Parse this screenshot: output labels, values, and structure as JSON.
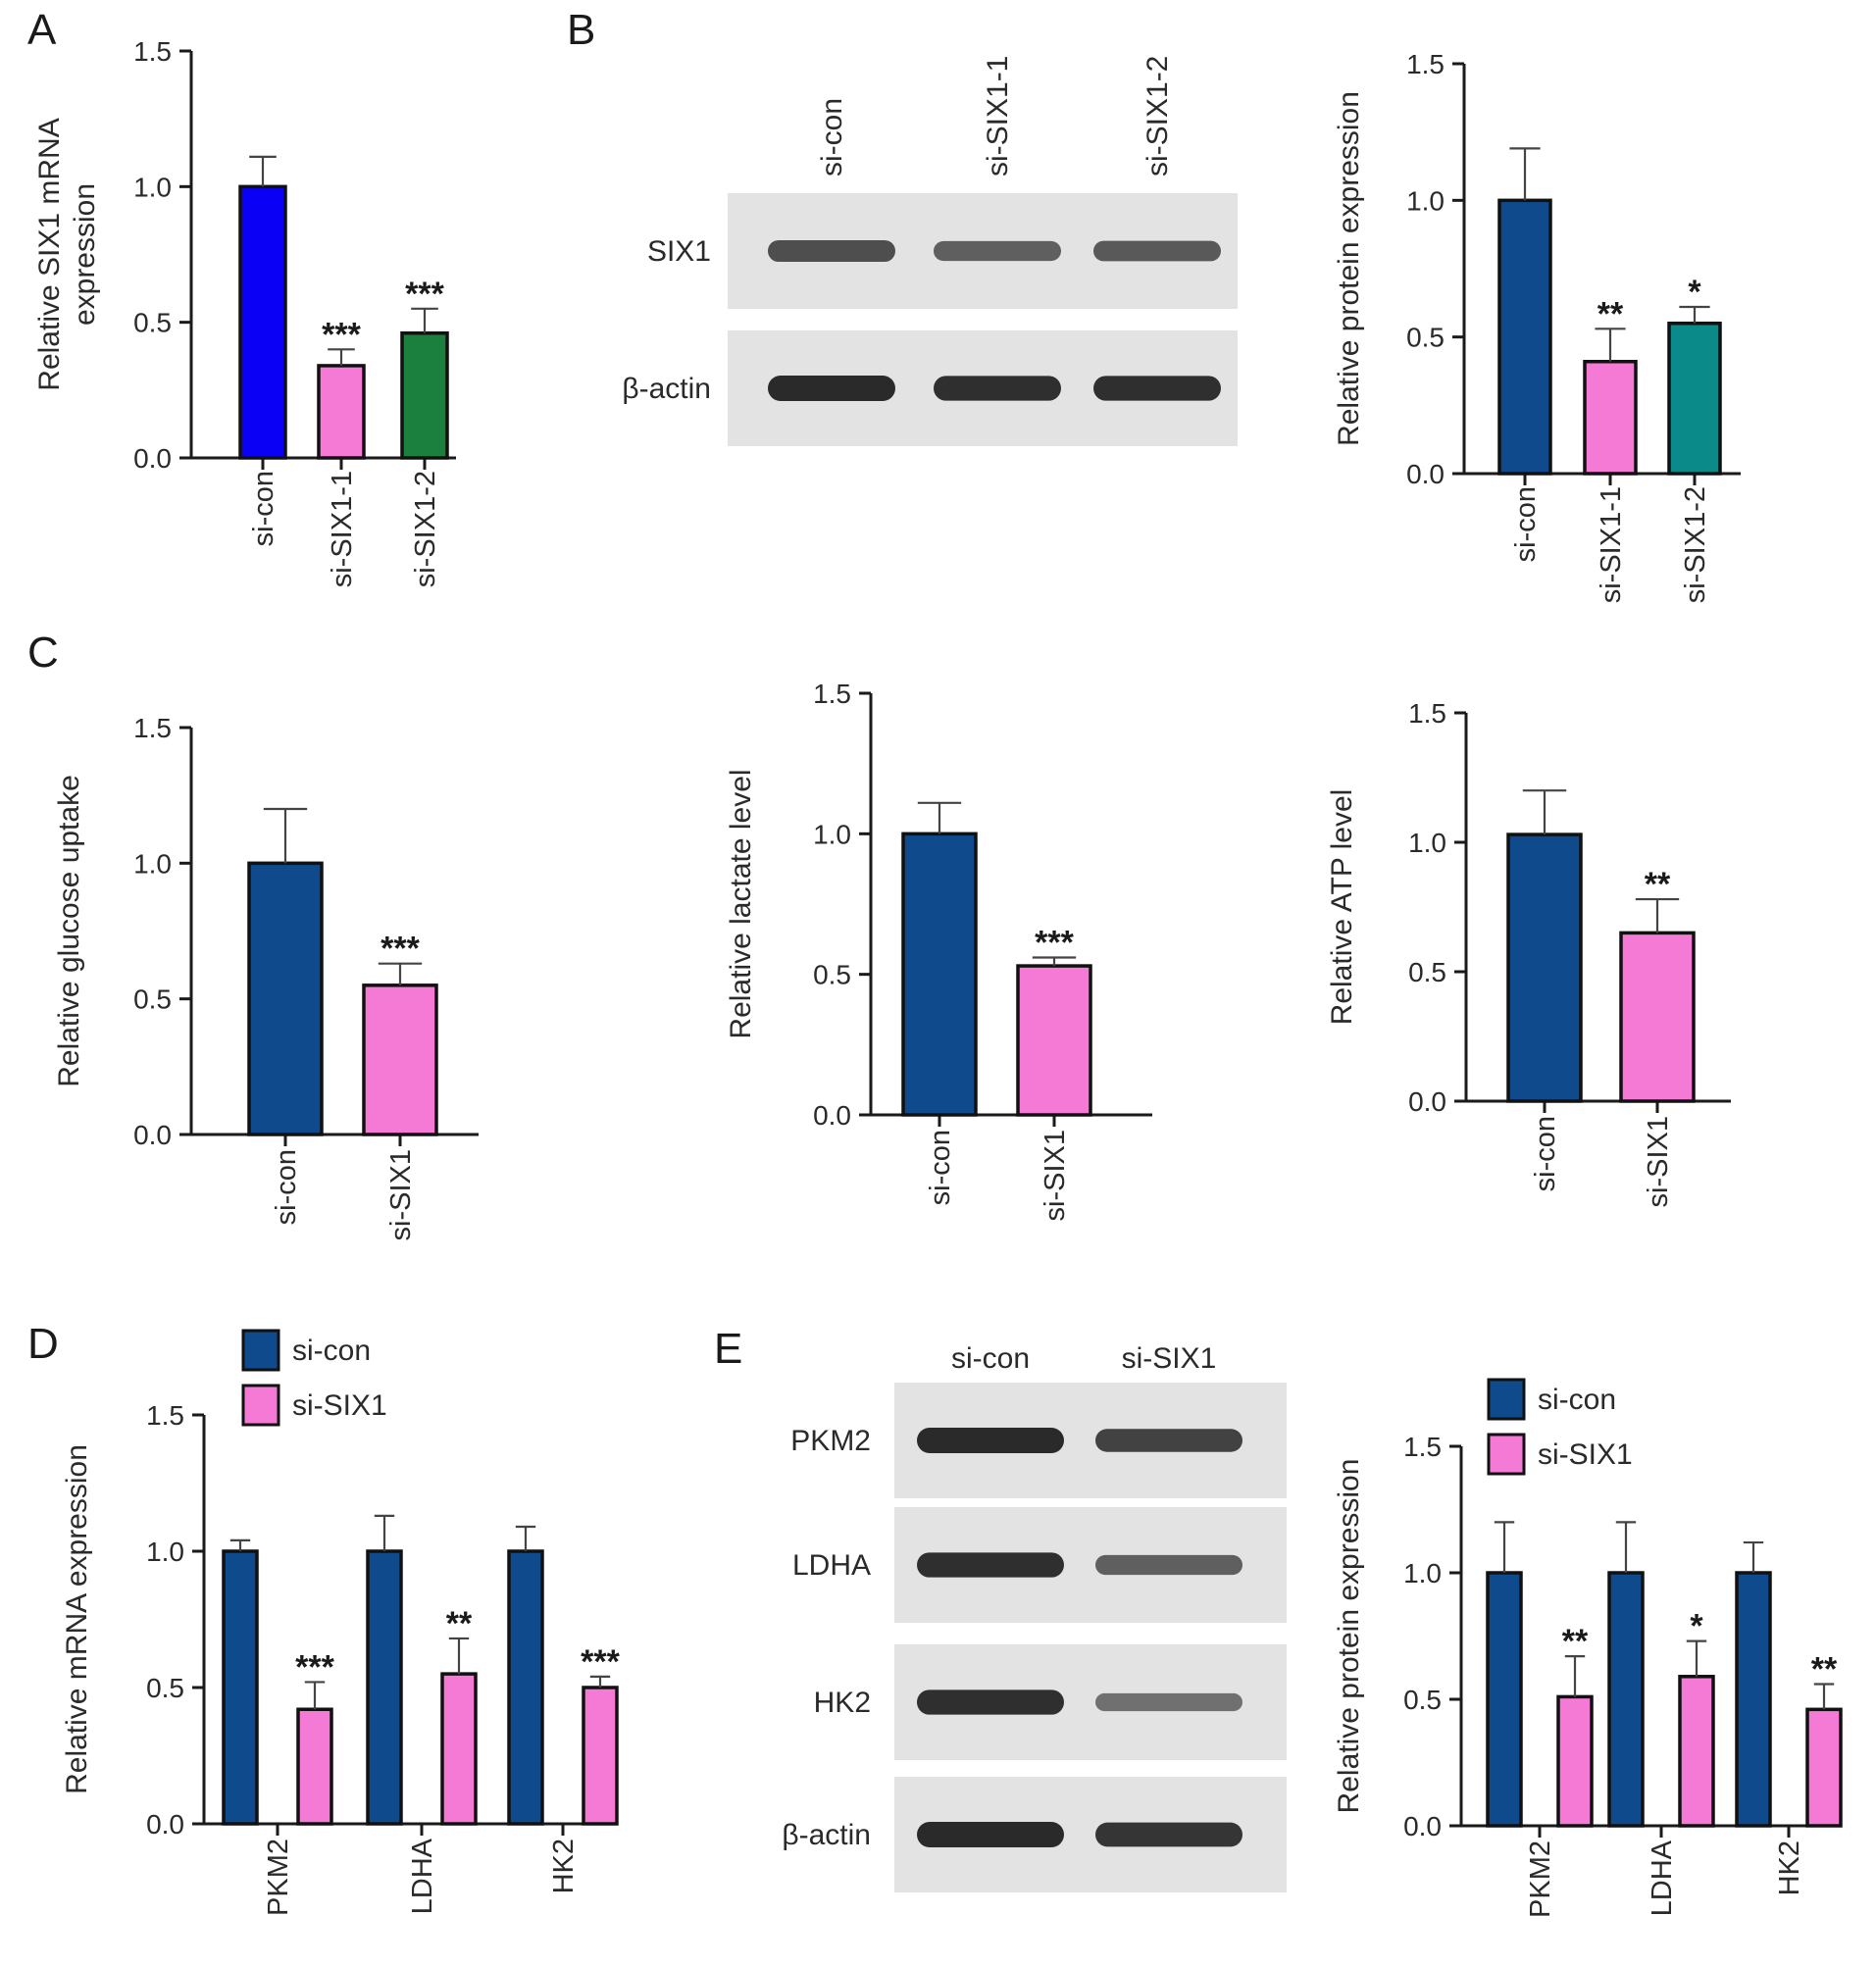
{
  "colors": {
    "blue": "#0a00f5",
    "pink": "#f47ad6",
    "green": "#1b7f3e",
    "navy": "#0f4b8c",
    "teal": "#0b8a8a",
    "blot_bg": "#e3e3e3",
    "band": "#202020"
  },
  "panel_letters": [
    "A",
    "B",
    "C",
    "D",
    "E"
  ],
  "chart_data": [
    {
      "id": "A",
      "type": "bar",
      "ylabel": [
        "Relative SIX1 mRNA",
        "expression"
      ],
      "ylim": [
        0,
        1.5
      ],
      "yticks": [
        "0.0",
        "0.5",
        "1.0",
        "1.5"
      ],
      "categories": [
        "si-con",
        "si-SIX1-1",
        "si-SIX1-2"
      ],
      "values": [
        1.0,
        0.34,
        0.46
      ],
      "errors": [
        0.11,
        0.06,
        0.09
      ],
      "significance": [
        "",
        "***",
        "***"
      ],
      "colors": [
        "blue",
        "pink",
        "green"
      ]
    },
    {
      "id": "B-bar",
      "type": "bar",
      "ylabel": [
        "Relative protein expression"
      ],
      "ylim": [
        0,
        1.5
      ],
      "yticks": [
        "0.0",
        "0.5",
        "1.0",
        "1.5"
      ],
      "categories": [
        "si-con",
        "si-SIX1-1",
        "si-SIX1-2"
      ],
      "values": [
        1.0,
        0.41,
        0.55
      ],
      "errors": [
        0.19,
        0.12,
        0.06
      ],
      "significance": [
        "",
        "**",
        "*"
      ],
      "colors": [
        "navy",
        "pink",
        "teal"
      ]
    },
    {
      "id": "C1",
      "type": "bar",
      "ylabel": [
        "Relative glucose uptake"
      ],
      "ylim": [
        0,
        1.5
      ],
      "yticks": [
        "0.0",
        "0.5",
        "1.0",
        "1.5"
      ],
      "categories": [
        "si-con",
        "si-SIX1"
      ],
      "values": [
        1.0,
        0.55
      ],
      "errors": [
        0.2,
        0.08
      ],
      "significance": [
        "",
        "***"
      ],
      "colors": [
        "navy",
        "pink"
      ]
    },
    {
      "id": "C2",
      "type": "bar",
      "ylabel": [
        "Relative lactate level"
      ],
      "ylim": [
        0,
        1.5
      ],
      "yticks": [
        "0.0",
        "0.5",
        "1.0",
        "1.5"
      ],
      "categories": [
        "si-con",
        "si-SIX1"
      ],
      "values": [
        1.0,
        0.53
      ],
      "errors": [
        0.11,
        0.03
      ],
      "significance": [
        "",
        "***"
      ],
      "colors": [
        "navy",
        "pink"
      ]
    },
    {
      "id": "C3",
      "type": "bar",
      "ylabel": [
        "Relative ATP level"
      ],
      "ylim": [
        0,
        1.5
      ],
      "yticks": [
        "0.0",
        "0.5",
        "1.0",
        "1.5"
      ],
      "categories": [
        "si-con",
        "si-SIX1"
      ],
      "values": [
        1.03,
        0.65
      ],
      "errors": [
        0.17,
        0.13
      ],
      "significance": [
        "",
        "**"
      ],
      "colors": [
        "navy",
        "pink"
      ]
    },
    {
      "id": "D",
      "type": "bar",
      "ylabel": [
        "Relative mRNA expression"
      ],
      "ylim": [
        0,
        1.5
      ],
      "yticks": [
        "0.0",
        "0.5",
        "1.0",
        "1.5"
      ],
      "categories": [
        "PKM2",
        "LDHA",
        "HK2"
      ],
      "series": [
        {
          "name": "si-con",
          "color": "navy",
          "values": [
            1.0,
            1.0,
            1.0
          ],
          "errors": [
            0.04,
            0.13,
            0.09
          ],
          "significance": [
            "",
            "",
            ""
          ]
        },
        {
          "name": "si-SIX1",
          "color": "pink",
          "values": [
            0.42,
            0.55,
            0.5
          ],
          "errors": [
            0.1,
            0.13,
            0.04
          ],
          "significance": [
            "***",
            "**",
            "***"
          ]
        }
      ]
    },
    {
      "id": "E-bar",
      "type": "bar",
      "ylabel": [
        "Relative protein expression"
      ],
      "ylim": [
        0,
        1.5
      ],
      "yticks": [
        "0.0",
        "0.5",
        "1.0",
        "1.5"
      ],
      "categories": [
        "PKM2",
        "LDHA",
        "HK2"
      ],
      "series": [
        {
          "name": "si-con",
          "color": "navy",
          "values": [
            1.0,
            1.0,
            1.0
          ],
          "errors": [
            0.2,
            0.2,
            0.12
          ],
          "significance": [
            "",
            "",
            ""
          ]
        },
        {
          "name": "si-SIX1",
          "color": "pink",
          "values": [
            0.51,
            0.59,
            0.46
          ],
          "errors": [
            0.16,
            0.14,
            0.1
          ],
          "significance": [
            "**",
            "*",
            "**"
          ]
        }
      ]
    }
  ],
  "blots": [
    {
      "id": "B-blot",
      "lanes": [
        "si-con",
        "si-SIX1-1",
        "si-SIX1-2"
      ],
      "lane_label_rotation": "vertical",
      "rows": [
        {
          "label": "SIX1",
          "intensities": [
            0.7,
            0.55,
            0.6
          ]
        },
        {
          "label": "β-actin",
          "intensities": [
            1.0,
            0.95,
            0.95
          ]
        }
      ]
    },
    {
      "id": "E-blot",
      "lanes": [
        "si-con",
        "si-SIX1"
      ],
      "lane_label_rotation": "horizontal",
      "rows": [
        {
          "label": "PKM2",
          "intensities": [
            1.0,
            0.8
          ]
        },
        {
          "label": "LDHA",
          "intensities": [
            0.95,
            0.55
          ]
        },
        {
          "label": "HK2",
          "intensities": [
            0.95,
            0.4
          ]
        },
        {
          "label": "β-actin",
          "intensities": [
            1.0,
            0.9
          ]
        }
      ]
    }
  ]
}
